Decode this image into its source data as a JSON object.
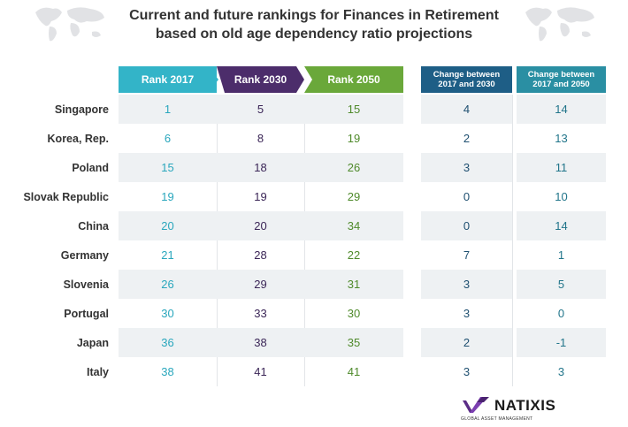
{
  "title_line1": "Current and future rankings for Finances in Retirement",
  "title_line2": "based on old age dependency ratio projections",
  "headers": {
    "rank2017": "Rank 2017",
    "rank2030": "Rank 2030",
    "rank2050": "Rank 2050",
    "change1_line1": "Change between",
    "change1_line2": "2017 and 2030",
    "change2_line1": "Change between",
    "change2_line2": "2017 and 2050"
  },
  "colors": {
    "rank2017": "#33b4c8",
    "rank2030": "#4c2d6b",
    "rank2050": "#6aa83a",
    "change1": "#1e5e86",
    "change2": "#2a8fa3"
  },
  "logo": {
    "name": "NATIXIS",
    "subtitle": "GLOBAL ASSET MANAGEMENT"
  },
  "chart_data": {
    "type": "table",
    "columns": [
      "Rank 2017",
      "Rank 2030",
      "Rank 2050",
      "Change between 2017 and 2030",
      "Change between 2017 and 2050"
    ],
    "rows": [
      {
        "country": "Singapore",
        "values": [
          "1",
          "5",
          "15",
          "4",
          "14"
        ]
      },
      {
        "country": "Korea, Rep.",
        "values": [
          "6",
          "8",
          "19",
          "2",
          "13"
        ]
      },
      {
        "country": "Poland",
        "values": [
          "15",
          "18",
          "26",
          "3",
          "11"
        ]
      },
      {
        "country": "Slovak Republic",
        "values": [
          "19",
          "19",
          "29",
          "0",
          "10"
        ]
      },
      {
        "country": "China",
        "values": [
          "20",
          "20",
          "34",
          "0",
          "14"
        ]
      },
      {
        "country": "Germany",
        "values": [
          "21",
          "28",
          "22",
          "7",
          "1"
        ]
      },
      {
        "country": "Slovenia",
        "values": [
          "26",
          "29",
          "31",
          "3",
          "5"
        ]
      },
      {
        "country": "Portugal",
        "values": [
          "30",
          "33",
          "30",
          "3",
          "0"
        ]
      },
      {
        "country": "Japan",
        "values": [
          "36",
          "38",
          "35",
          "2",
          "-1"
        ]
      },
      {
        "country": "Italy",
        "values": [
          "38",
          "41",
          "41",
          "3",
          "3"
        ]
      }
    ]
  }
}
